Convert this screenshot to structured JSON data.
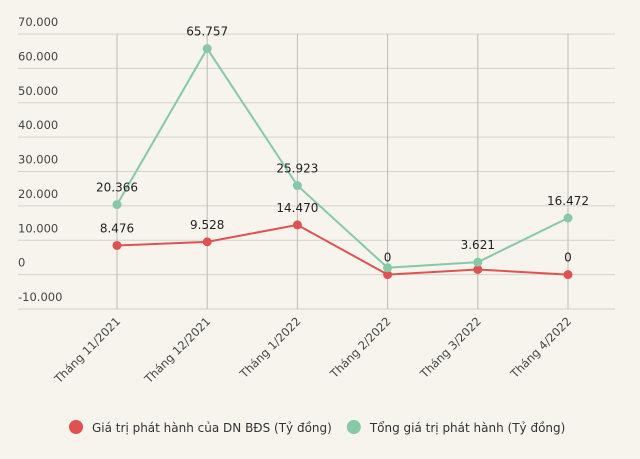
{
  "chart_data": {
    "type": "line",
    "categories": [
      "Tháng 11/2021",
      "Tháng 12/2021",
      "Tháng 1/2022",
      "Tháng 2/2022",
      "Tháng 3/2022",
      "Tháng 4/2022"
    ],
    "series": [
      {
        "name": "Giá trị phát hành của DN BĐS (Tỷ đồng)",
        "color": "#e05252",
        "values": [
          8476,
          9528,
          14470,
          0,
          1500,
          0
        ],
        "value_labels": [
          "8.476",
          "9.528",
          "14.470",
          "0",
          null,
          "0"
        ]
      },
      {
        "name": "Tổng giá trị phát hành (Tỷ đồng)",
        "color": "#86c9a6",
        "values": [
          20366,
          65757,
          25923,
          2000,
          3621,
          16472
        ],
        "value_labels": [
          "20.366",
          "65.757",
          "25.923",
          null,
          "3.621",
          "16.472"
        ]
      }
    ],
    "ylim": [
      -10000,
      70000
    ],
    "yticks": [
      {
        "value": -10000,
        "label": "-10.000"
      },
      0,
      {
        "value": 10000,
        "label": "10.000"
      },
      {
        "value": 20000,
        "label": "20.000"
      },
      {
        "value": 30000,
        "label": "30.000"
      },
      {
        "value": 40000,
        "label": "40.000"
      },
      {
        "value": 50000,
        "label": "50.000"
      },
      {
        "value": 60000,
        "label": "60.000"
      },
      {
        "value": 70000,
        "label": "70.000"
      }
    ],
    "grid": true
  }
}
